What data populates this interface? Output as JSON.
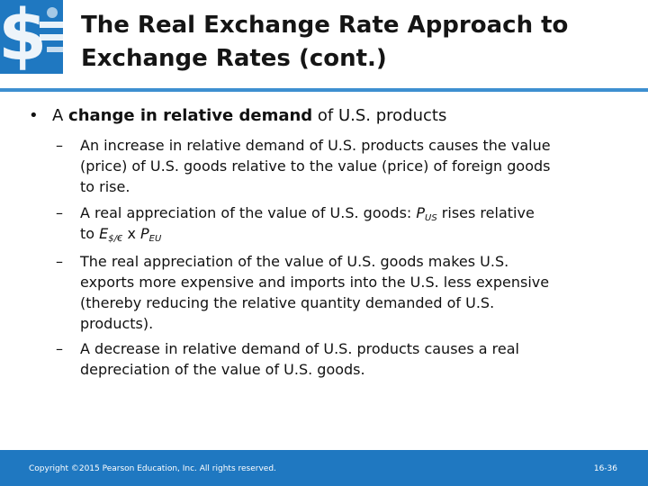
{
  "title": {
    "line1": "The Real Exchange Rate Approach to",
    "line2": "Exchange Rates (cont.)"
  },
  "bullet": {
    "prefix": "A ",
    "bold": "change in relative demand",
    "suffix": " of U.S. products"
  },
  "subs": [
    {
      "lines": [
        "An increase in relative demand of U.S. products causes the value",
        "(price) of U.S. goods relative to the value (price) of foreign goods",
        "to rise."
      ]
    },
    {
      "line1_pre": "A real appreciation of the value of U.S. goods: ",
      "p_us_base": "P",
      "p_us_sub": "US",
      "line1_post": " rises relative",
      "line2_pre": "to ",
      "e_base": "E",
      "e_sub": "$/€",
      "line2_mid": " x ",
      "p_eu_base": "P",
      "p_eu_sub": "EU"
    },
    {
      "lines": [
        "The real appreciation of the value of U.S. goods makes U.S.",
        "exports more expensive and imports into the U.S. less expensive",
        "(thereby reducing the relative quantity demanded of U.S.",
        "products)."
      ]
    },
    {
      "lines": [
        "A decrease in relative demand of U.S. products causes a real",
        "depreciation of the value of U.S. goods."
      ]
    }
  ],
  "bullet_symbol": "•",
  "dash_symbol": "–",
  "footer": {
    "copyright": "Copyright ©2015 Pearson Education, Inc. All rights reserved.",
    "page": "16-36"
  },
  "colors": {
    "brand_blue": "#1f78c1",
    "divider_blue": "#3d8fd0"
  },
  "icons": {
    "logo": "dollar-euro-logo"
  }
}
